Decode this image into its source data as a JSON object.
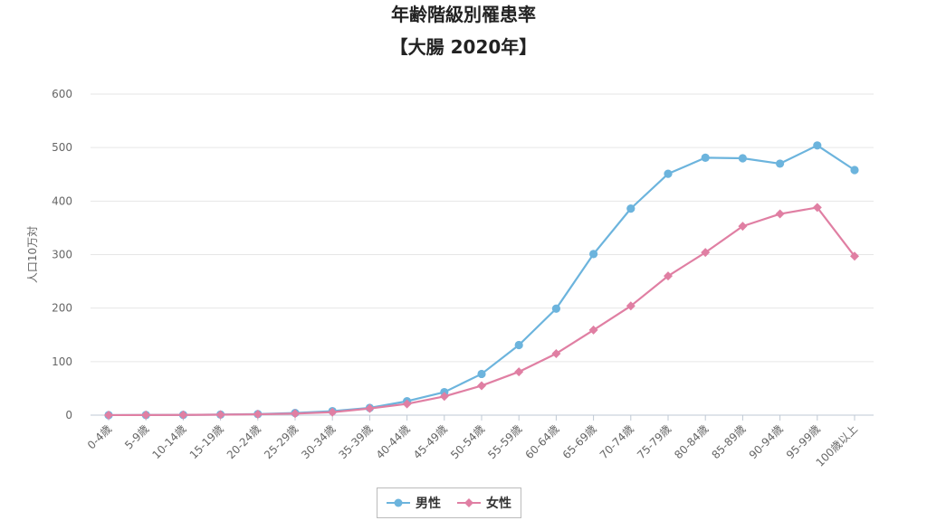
{
  "chart_data": {
    "type": "line",
    "title": "年齢階級別罹患率",
    "subtitle": "【大腸 2020年】",
    "ylabel": "人口10万対",
    "xlabel": "",
    "ylim": [
      0,
      600
    ],
    "yticks": [
      0,
      100,
      200,
      300,
      400,
      500,
      600
    ],
    "grid": true,
    "legend_position": "bottom-center",
    "categories": [
      "0-4歳",
      "5-9歳",
      "10-14歳",
      "15-19歳",
      "20-24歳",
      "25-29歳",
      "30-34歳",
      "35-39歳",
      "40-44歳",
      "45-49歳",
      "50-54歳",
      "55-59歳",
      "60-64歳",
      "65-69歳",
      "70-74歳",
      "75-79歳",
      "80-84歳",
      "85-89歳",
      "90-94歳",
      "95-99歳",
      "100歳以上"
    ],
    "series": [
      {
        "name": "男性",
        "color": "#6cb4dd",
        "marker": "circle",
        "values": [
          0.1,
          0.2,
          0.4,
          1.0,
          2.0,
          4.0,
          7.5,
          13.5,
          26.0,
          43.0,
          77.0,
          131.0,
          199.0,
          301.0,
          386.0,
          451.0,
          481.0,
          480.0,
          470.0,
          504.0,
          458.0
        ]
      },
      {
        "name": "女性",
        "color": "#e07fa3",
        "marker": "diamond",
        "values": [
          0.1,
          0.2,
          0.4,
          0.9,
          1.6,
          3.0,
          5.5,
          12.5,
          21.0,
          35.0,
          55.0,
          81.0,
          115.0,
          159.0,
          204.0,
          260.0,
          304.0,
          353.0,
          376.0,
          388.0,
          297.0
        ]
      }
    ]
  }
}
